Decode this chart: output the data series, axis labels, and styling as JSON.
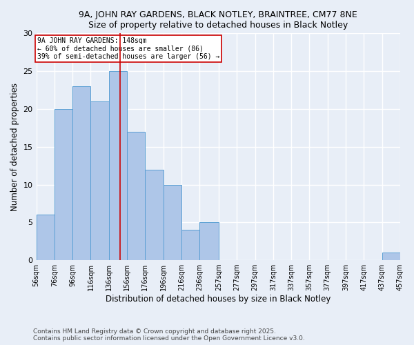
{
  "title1": "9A, JOHN RAY GARDENS, BLACK NOTLEY, BRAINTREE, CM77 8NE",
  "title2": "Size of property relative to detached houses in Black Notley",
  "xlabel": "Distribution of detached houses by size in Black Notley",
  "ylabel": "Number of detached properties",
  "footnote1": "Contains HM Land Registry data © Crown copyright and database right 2025.",
  "footnote2": "Contains public sector information licensed under the Open Government Licence v3.0.",
  "bins": [
    56,
    76,
    96,
    116,
    136,
    156,
    176,
    196,
    216,
    236,
    257,
    277,
    297,
    317,
    337,
    357,
    377,
    397,
    417,
    437,
    457
  ],
  "values": [
    6,
    20,
    23,
    21,
    25,
    17,
    12,
    10,
    4,
    5,
    0,
    0,
    0,
    0,
    0,
    0,
    0,
    0,
    0,
    1
  ],
  "bar_color": "#aec6e8",
  "bar_edge_color": "#5a9fd4",
  "vline_x": 148,
  "vline_color": "#cc0000",
  "annotation_text": "9A JOHN RAY GARDENS: 148sqm\n← 60% of detached houses are smaller (86)\n39% of semi-detached houses are larger (56) →",
  "annotation_box_color": "#ffffff",
  "annotation_box_edge_color": "#cc0000",
  "ylim": [
    0,
    30
  ],
  "yticks": [
    0,
    5,
    10,
    15,
    20,
    25,
    30
  ],
  "background_color": "#e8eef7",
  "grid_color": "#ffffff"
}
